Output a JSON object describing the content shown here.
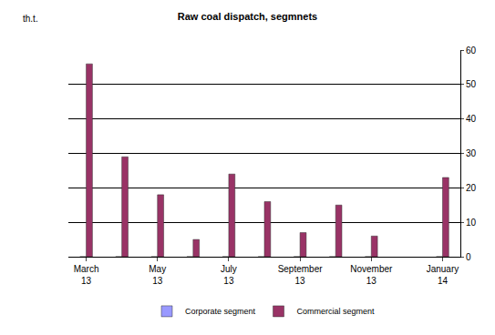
{
  "chart_data": {
    "type": "bar",
    "title": "Raw coal dispatch, segmnets",
    "ylabel": "th.t.",
    "categories": [
      "March 13",
      null,
      "May 13",
      null,
      "July 13",
      null,
      "September 13",
      null,
      "November 13",
      null,
      "January 14"
    ],
    "series": [
      {
        "name": "Corporate segment",
        "color": "#9999ff",
        "values": [
          0,
          0,
          0,
          0,
          0,
          0,
          0,
          0,
          0,
          null,
          0
        ]
      },
      {
        "name": "Commercial segment",
        "color": "#993366",
        "values": [
          56,
          29,
          18,
          5,
          24,
          16,
          7,
          15,
          6,
          null,
          23
        ]
      }
    ],
    "ylim": [
      0,
      60
    ],
    "yticks": [
      0,
      10,
      20,
      30,
      40,
      50,
      60
    ],
    "grid": true,
    "legend": "bottom"
  }
}
